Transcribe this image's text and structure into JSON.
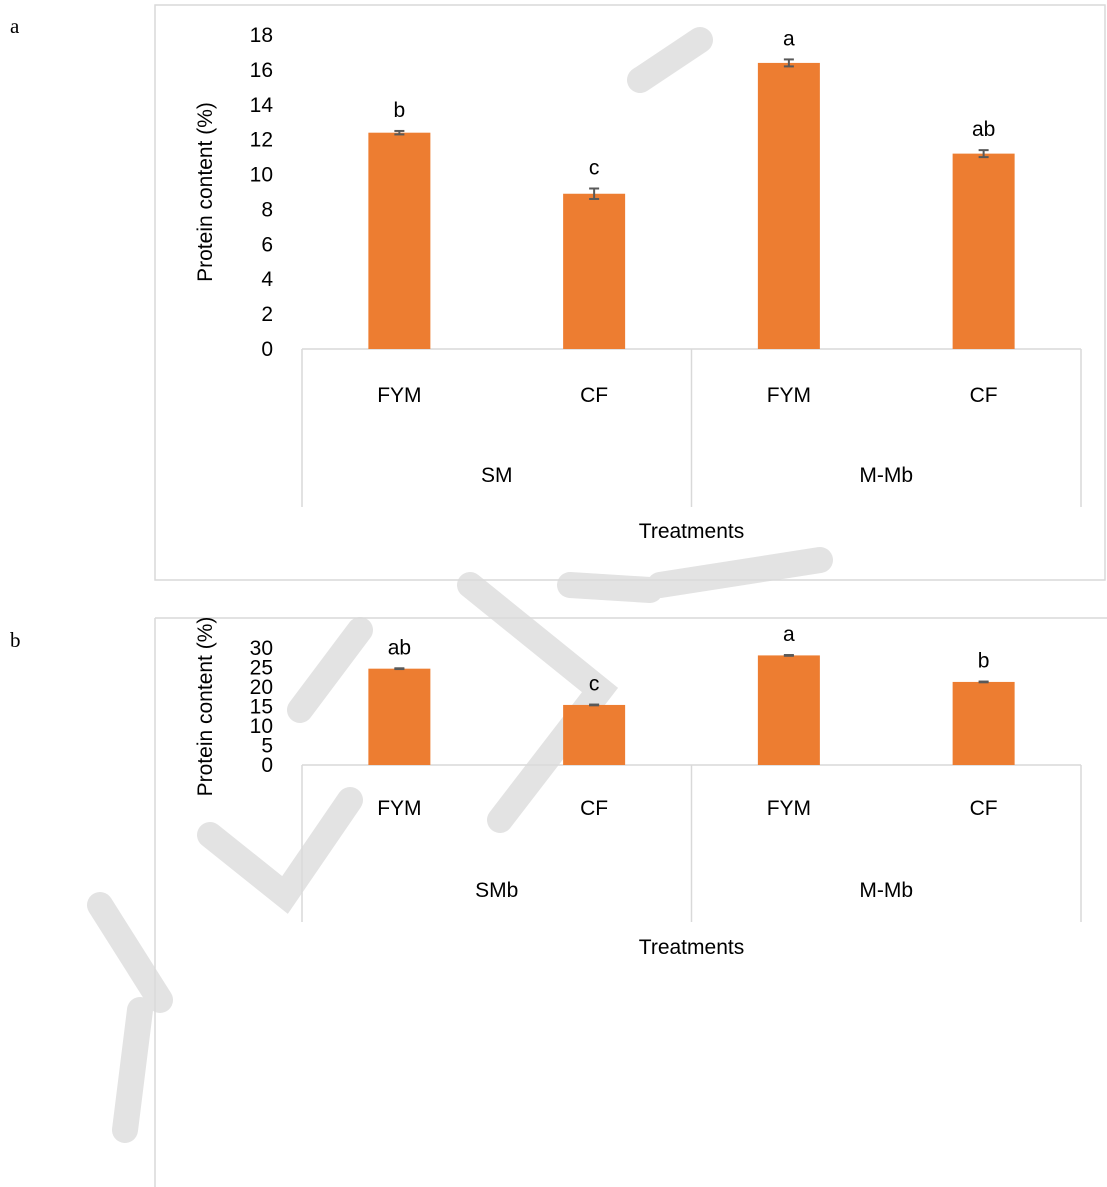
{
  "panels": [
    {
      "letter": "a"
    },
    {
      "letter": "b"
    }
  ],
  "colors": {
    "bar": "#ED7D31",
    "error_bar": "#595959",
    "axis_line": "#D9D9D9",
    "frame": "#D9D9D9",
    "text": "#000000",
    "watermark": "#D9D9D9"
  },
  "chart_data": [
    {
      "type": "bar",
      "panel": "a",
      "title": "",
      "xlabel": "Treatments",
      "ylabel": "Protein content (%)",
      "ylim": [
        0,
        18
      ],
      "y_ticks": [
        0,
        2,
        4,
        6,
        8,
        10,
        12,
        14,
        16,
        18
      ],
      "grid": false,
      "groups": [
        "SM",
        "M-Mb"
      ],
      "categories": [
        "FYM",
        "CF",
        "FYM",
        "CF"
      ],
      "values": [
        12.4,
        8.9,
        16.4,
        11.2
      ],
      "errors": [
        0.1,
        0.3,
        0.2,
        0.2
      ],
      "bar_labels": [
        "b",
        "c",
        "a",
        "ab"
      ]
    },
    {
      "type": "bar",
      "panel": "b",
      "title": "",
      "xlabel": "Treatments",
      "ylabel": "Protein content (%)",
      "ylim": [
        0,
        30
      ],
      "y_ticks": [
        0,
        5,
        10,
        15,
        20,
        25,
        30
      ],
      "grid": false,
      "groups": [
        "SMb",
        "M-Mb"
      ],
      "categories": [
        "FYM",
        "CF",
        "FYM",
        "CF"
      ],
      "values": [
        24.7,
        15.4,
        28.1,
        21.3
      ],
      "errors": [
        0.1,
        0.1,
        0.1,
        0.1
      ],
      "bar_labels": [
        "ab",
        "c",
        "a",
        "b"
      ]
    }
  ]
}
